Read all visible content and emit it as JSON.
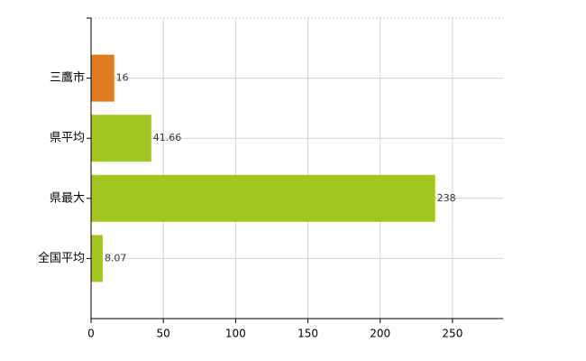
{
  "chart_data": {
    "type": "bar",
    "orientation": "horizontal",
    "categories": [
      "三鷹市",
      "県平均",
      "県最大",
      "全国平均"
    ],
    "values": [
      16,
      41.66,
      238,
      8.07
    ],
    "colors": [
      "#e07b1f",
      "#a2c520",
      "#a2c520",
      "#a2c520"
    ],
    "xlim": [
      0,
      285
    ],
    "xticks": [
      0,
      50,
      100,
      150,
      200,
      250
    ],
    "grid": true
  }
}
